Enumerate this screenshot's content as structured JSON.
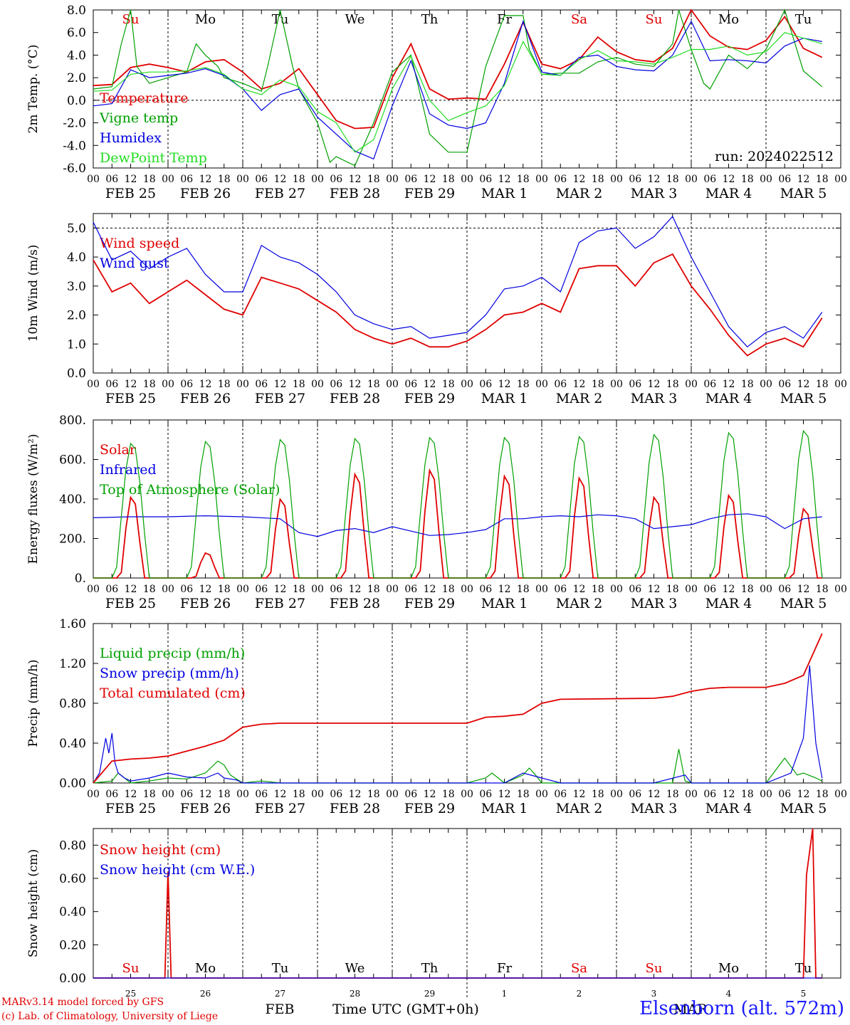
{
  "run_label": "run: 2024022512",
  "footer": {
    "model": "MARv3.14 model forced by GFS",
    "copyright": "(c) Lab. of Climatology, University of Liege",
    "station": "Elsenborn (alt. 572m)",
    "month_label": "FEB",
    "month_label2": "MAR",
    "time_label": "Time UTC (GMT+0h)"
  },
  "days": [
    {
      "date": "FEB 25",
      "short": "25",
      "weekday": "Su",
      "weekend": true
    },
    {
      "date": "FEB 26",
      "short": "26",
      "weekday": "Mo",
      "weekend": false
    },
    {
      "date": "FEB 27",
      "short": "27",
      "weekday": "Tu",
      "weekend": false
    },
    {
      "date": "FEB 28",
      "short": "28",
      "weekday": "We",
      "weekend": false
    },
    {
      "date": "FEB 29",
      "short": "29",
      "weekday": "Th",
      "weekend": false
    },
    {
      "date": "MAR 1",
      "short": "1",
      "weekday": "Fr",
      "weekend": false
    },
    {
      "date": "MAR 2",
      "short": "2",
      "weekday": "Sa",
      "weekend": true
    },
    {
      "date": "MAR 3",
      "short": "3",
      "weekday": "Su",
      "weekend": true
    },
    {
      "date": "MAR 4",
      "short": "4",
      "weekday": "Mo",
      "weekend": false
    },
    {
      "date": "MAR 5",
      "short": "5",
      "weekday": "Tu",
      "weekend": false
    }
  ],
  "hour_ticks": [
    "00",
    "06",
    "12",
    "18"
  ],
  "colors": {
    "red": "#e00000",
    "green": "#00a000",
    "blue": "#0000e0",
    "lightgreen": "#22dd22",
    "weekend": "#e00000"
  },
  "chart_data": [
    {
      "type": "line",
      "ylabel": "2m Temp. (°C)",
      "ylim": [
        -6,
        8
      ],
      "yticks": [
        "-6.0",
        "-4.0",
        "-2.0",
        "0.0",
        "2.0",
        "4.0",
        "6.0",
        "8.0"
      ],
      "dashed_y": 0,
      "x_unit": "hours since FEB 25 00 UTC",
      "series": [
        {
          "name": "Temperature",
          "color": "red",
          "x": [
            0,
            6,
            12,
            18,
            24,
            30,
            36,
            42,
            48,
            54,
            60,
            66,
            72,
            78,
            84,
            90,
            96,
            102,
            108,
            114,
            120,
            126,
            132,
            138,
            144,
            150,
            156,
            162,
            168,
            174,
            180,
            186,
            192,
            198,
            204,
            210,
            216,
            222,
            228,
            234
          ],
          "y": [
            1.3,
            1.4,
            2.9,
            3.2,
            2.9,
            2.5,
            3.4,
            3.6,
            2.5,
            1.0,
            1.5,
            2.8,
            0.5,
            -1.8,
            -2.5,
            -2.4,
            2.0,
            5.0,
            1.0,
            0.1,
            0.2,
            0.1,
            3.2,
            6.9,
            3.2,
            2.8,
            3.6,
            5.6,
            4.3,
            3.6,
            3.4,
            4.6,
            8.0,
            5.7,
            4.7,
            4.5,
            5.3,
            7.4,
            4.6,
            3.8
          ]
        },
        {
          "name": "Vigne temp",
          "color": "green",
          "x": [
            0,
            6,
            9,
            12,
            14,
            18,
            24,
            30,
            33,
            36,
            40,
            42,
            48,
            54,
            56,
            60,
            64,
            66,
            72,
            76,
            78,
            84,
            90,
            96,
            102,
            108,
            114,
            120,
            126,
            132,
            138,
            140,
            144,
            150,
            156,
            162,
            168,
            174,
            180,
            186,
            188,
            192,
            196,
            198,
            204,
            210,
            216,
            222,
            228,
            234
          ],
          "y": [
            1.0,
            1.2,
            5.0,
            8.0,
            3.0,
            1.5,
            2.0,
            2.5,
            5.0,
            4.0,
            3.0,
            2.0,
            1.5,
            0.8,
            3.0,
            8.0,
            3.0,
            1.0,
            -2.0,
            -5.5,
            -5.0,
            -5.8,
            -2.0,
            2.5,
            4.0,
            -3.0,
            -4.6,
            -4.6,
            3.0,
            7.5,
            7.5,
            4.5,
            2.3,
            2.4,
            2.4,
            3.4,
            3.8,
            3.2,
            3.0,
            5.0,
            8.0,
            4.5,
            1.5,
            1.0,
            4.0,
            2.8,
            4.5,
            8.0,
            2.6,
            1.2
          ]
        },
        {
          "name": "Humidex",
          "color": "blue",
          "x": [
            0,
            6,
            12,
            18,
            24,
            30,
            36,
            42,
            48,
            54,
            60,
            66,
            72,
            78,
            84,
            90,
            96,
            102,
            108,
            114,
            120,
            126,
            132,
            138,
            144,
            150,
            156,
            162,
            168,
            174,
            180,
            186,
            192,
            198,
            204,
            210,
            216,
            222,
            228,
            234
          ],
          "y": [
            -0.5,
            -0.3,
            2.7,
            2.0,
            2.2,
            2.4,
            2.8,
            2.2,
            1.0,
            -0.9,
            0.5,
            1.0,
            -1.5,
            -3.0,
            -4.5,
            -5.2,
            -0.5,
            3.5,
            -1.2,
            -2.2,
            -2.5,
            -2.0,
            1.5,
            7.0,
            2.5,
            2.2,
            3.8,
            4.0,
            3.0,
            2.7,
            2.6,
            4.0,
            7.0,
            3.5,
            3.6,
            3.5,
            3.3,
            4.8,
            5.5,
            5.2
          ]
        },
        {
          "name": "DewPoint Temp",
          "color": "lightgreen",
          "x": [
            0,
            6,
            12,
            18,
            24,
            30,
            36,
            42,
            48,
            54,
            60,
            66,
            72,
            78,
            84,
            90,
            96,
            102,
            108,
            114,
            120,
            126,
            132,
            138,
            144,
            150,
            156,
            162,
            168,
            174,
            180,
            186,
            192,
            198,
            204,
            210,
            216,
            222,
            228,
            234
          ],
          "y": [
            0.8,
            0.9,
            2.3,
            2.5,
            2.5,
            2.6,
            2.9,
            2.3,
            1.0,
            0.5,
            1.8,
            1.2,
            -1.0,
            -2.0,
            -4.6,
            -3.5,
            1.0,
            3.9,
            0.0,
            -1.8,
            -1.1,
            -0.5,
            1.3,
            5.2,
            2.3,
            2.2,
            3.6,
            4.4,
            3.5,
            3.4,
            3.2,
            3.8,
            4.5,
            4.5,
            4.8,
            4.0,
            4.3,
            6.0,
            5.5,
            5.0
          ]
        }
      ]
    },
    {
      "type": "line",
      "ylabel": "10m Wind (m/s)",
      "ylim": [
        0,
        5.5
      ],
      "yticks": [
        "0.0",
        "1.0",
        "2.0",
        "3.0",
        "4.0",
        "5.0"
      ],
      "dashed_y": 5,
      "series": [
        {
          "name": "Wind speed",
          "color": "red",
          "x": [
            0,
            6,
            12,
            18,
            24,
            30,
            36,
            42,
            48,
            54,
            60,
            66,
            72,
            78,
            84,
            90,
            96,
            102,
            108,
            114,
            120,
            126,
            132,
            138,
            144,
            150,
            156,
            162,
            168,
            174,
            180,
            186,
            192,
            198,
            204,
            210,
            216,
            222,
            228,
            234
          ],
          "y": [
            3.9,
            2.8,
            3.1,
            2.4,
            2.8,
            3.2,
            2.7,
            2.2,
            2.0,
            3.3,
            3.1,
            2.9,
            2.5,
            2.1,
            1.5,
            1.2,
            1.0,
            1.2,
            0.9,
            0.9,
            1.1,
            1.5,
            2.0,
            2.1,
            2.4,
            2.1,
            3.6,
            3.7,
            3.7,
            3.0,
            3.8,
            4.1,
            3.0,
            2.2,
            1.3,
            0.6,
            1.0,
            1.2,
            0.9,
            1.9
          ]
        },
        {
          "name": "Wind gust",
          "color": "blue",
          "x": [
            0,
            6,
            12,
            18,
            24,
            30,
            36,
            42,
            48,
            54,
            60,
            66,
            72,
            78,
            84,
            90,
            96,
            102,
            108,
            114,
            120,
            126,
            132,
            138,
            144,
            150,
            156,
            162,
            168,
            174,
            180,
            186,
            192,
            198,
            204,
            210,
            216,
            222,
            228,
            234
          ],
          "y": [
            5.2,
            3.9,
            4.2,
            3.6,
            4.0,
            4.3,
            3.4,
            2.8,
            2.8,
            4.4,
            4.0,
            3.8,
            3.4,
            2.8,
            2.0,
            1.7,
            1.5,
            1.6,
            1.2,
            1.3,
            1.4,
            2.0,
            2.9,
            3.0,
            3.3,
            2.8,
            4.5,
            4.9,
            5.0,
            4.3,
            4.7,
            5.4,
            4.0,
            2.8,
            1.6,
            0.9,
            1.4,
            1.6,
            1.2,
            2.1
          ]
        }
      ]
    },
    {
      "type": "line",
      "ylabel": "Energy fluxes (W/m²)",
      "ylim": [
        0,
        800
      ],
      "yticks": [
        "0.",
        "200.",
        "400.",
        "600.",
        "800."
      ],
      "series": [
        {
          "name": "Solar",
          "color": "red",
          "peaks": [
            420,
            130,
            410,
            540,
            560,
            530,
            520,
            420,
            430,
            360
          ]
        },
        {
          "name": "Infrared",
          "color": "blue",
          "x": [
            0,
            12,
            24,
            36,
            48,
            60,
            66,
            72,
            78,
            84,
            90,
            96,
            108,
            114,
            120,
            126,
            132,
            138,
            144,
            150,
            156,
            162,
            168,
            174,
            180,
            186,
            192,
            198,
            204,
            210,
            216,
            222,
            228,
            234
          ],
          "y": [
            305,
            310,
            310,
            315,
            310,
            300,
            230,
            210,
            240,
            250,
            230,
            260,
            215,
            220,
            230,
            245,
            300,
            300,
            310,
            315,
            310,
            320,
            315,
            300,
            250,
            260,
            270,
            300,
            320,
            325,
            310,
            250,
            300,
            310
          ]
        },
        {
          "name": "Top of Atmosphere (Solar)",
          "color": "green",
          "peaks": [
            690,
            700,
            710,
            715,
            720,
            720,
            725,
            735,
            745,
            755
          ]
        }
      ]
    },
    {
      "type": "line",
      "ylabel": "Precip (mm/h)",
      "ylim": [
        0,
        1.6
      ],
      "yticks": [
        "0.00",
        "0.40",
        "0.80",
        "1.20",
        "1.60"
      ],
      "series": [
        {
          "name": "Liquid precip (mm/h)",
          "color": "green",
          "x": [
            0,
            6,
            8,
            10,
            12,
            18,
            24,
            30,
            36,
            40,
            42,
            44,
            48,
            54,
            60,
            72,
            96,
            120,
            126,
            128,
            130,
            132,
            138,
            140,
            142,
            144,
            150,
            180,
            186,
            188,
            190,
            192,
            198,
            204,
            216,
            222,
            226,
            228,
            232,
            234
          ],
          "y": [
            0,
            0.02,
            0.1,
            0.05,
            0,
            0.02,
            0.05,
            0.04,
            0.1,
            0.22,
            0.18,
            0.08,
            0,
            0.02,
            0,
            0,
            0,
            0,
            0.05,
            0.1,
            0.05,
            0,
            0.08,
            0.15,
            0.08,
            0,
            0,
            0,
            0,
            0.34,
            0.02,
            0,
            0,
            0,
            0,
            0.25,
            0.08,
            0.1,
            0.05,
            0.02
          ]
        },
        {
          "name": "Snow precip (mm/h)",
          "color": "blue",
          "x": [
            0,
            2,
            4,
            5,
            6,
            7,
            8,
            10,
            12,
            18,
            24,
            30,
            36,
            40,
            42,
            46,
            48,
            54,
            60,
            72,
            96,
            120,
            132,
            138,
            144,
            150,
            180,
            190,
            192,
            198,
            204,
            216,
            224,
            228,
            230,
            232,
            234
          ],
          "y": [
            0,
            0.1,
            0.45,
            0.3,
            0.5,
            0.2,
            0.1,
            0.05,
            0.02,
            0.05,
            0.1,
            0.06,
            0.05,
            0.1,
            0.05,
            0.03,
            0,
            0,
            0,
            0,
            0,
            0,
            0,
            0.1,
            0.05,
            0,
            0,
            0.08,
            0,
            0,
            0,
            0,
            0.1,
            0.45,
            1.18,
            0.4,
            0.05
          ]
        },
        {
          "name": "Total cumulated (cm)",
          "color": "red",
          "x": [
            0,
            6,
            12,
            18,
            24,
            30,
            36,
            42,
            48,
            54,
            60,
            72,
            96,
            120,
            126,
            132,
            138,
            144,
            150,
            180,
            186,
            192,
            198,
            204,
            210,
            216,
            222,
            228,
            234
          ],
          "y": [
            0,
            0.22,
            0.24,
            0.25,
            0.27,
            0.32,
            0.37,
            0.43,
            0.56,
            0.59,
            0.6,
            0.6,
            0.6,
            0.6,
            0.66,
            0.67,
            0.69,
            0.8,
            0.84,
            0.85,
            0.87,
            0.92,
            0.95,
            0.96,
            0.96,
            0.96,
            1.0,
            1.08,
            1.5
          ]
        }
      ]
    },
    {
      "type": "line",
      "ylabel": "Snow height (cm)",
      "ylim": [
        0,
        0.9
      ],
      "yticks": [
        "0.00",
        "0.20",
        "0.40",
        "0.60",
        "0.80"
      ],
      "series": [
        {
          "name": "Snow height (cm)",
          "color": "red",
          "x": [
            0,
            23,
            24,
            25,
            228,
            229,
            231,
            232,
            234
          ],
          "y": [
            0,
            0,
            0.64,
            0,
            0,
            0.62,
            0.9,
            0,
            0
          ]
        },
        {
          "name": "Snow height (cm W.E.)",
          "color": "blue",
          "x": [
            0,
            234
          ],
          "y": [
            0,
            0
          ]
        }
      ]
    }
  ]
}
